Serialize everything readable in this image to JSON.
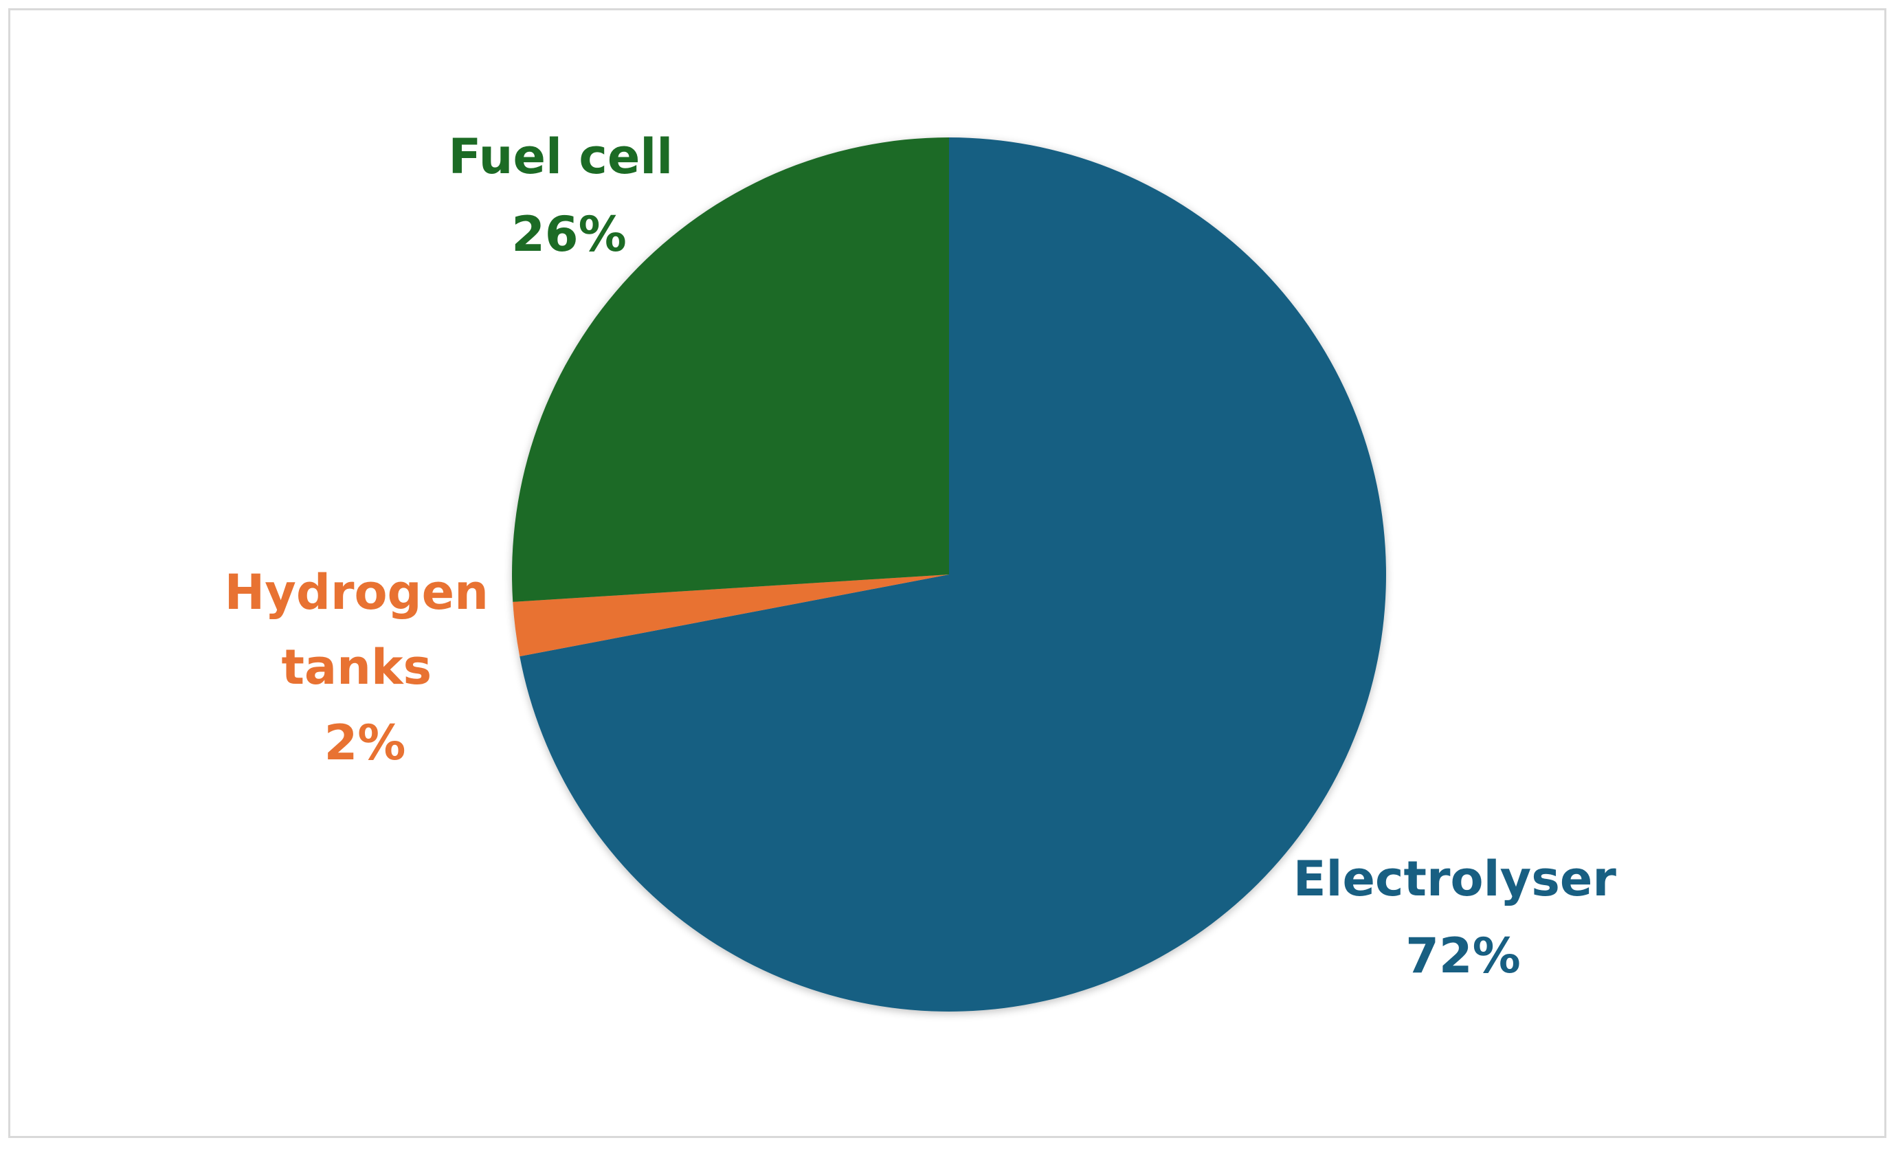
{
  "chart_data": {
    "type": "pie",
    "title": "",
    "slices": [
      {
        "label": "Electrolyser",
        "value": 72,
        "display": "72%",
        "color": "#185f82"
      },
      {
        "label": "Hydrogen tanks",
        "label_lines": [
          "Hydrogen",
          "tanks"
        ],
        "value": 2,
        "display": "2%",
        "color": "#e87232"
      },
      {
        "label": "Fuel cell",
        "value": 26,
        "display": "26%",
        "color": "#1c6b25"
      }
    ],
    "start_angle_deg": 0,
    "direction": "clockwise",
    "legend": "none",
    "data_labels": "outside"
  }
}
